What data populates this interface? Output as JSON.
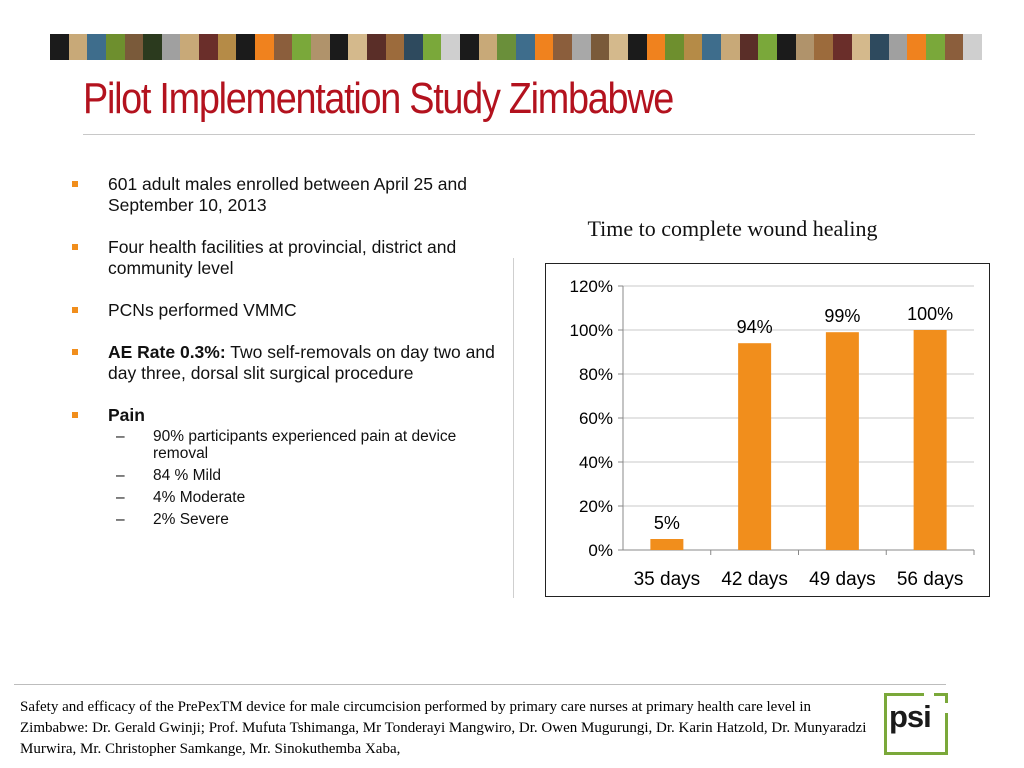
{
  "header": {
    "stripe_colors": [
      "#1b1b1b",
      "#c8a978",
      "#3e6d8c",
      "#6e8f2e",
      "#7a5a3a",
      "#2b3a1e",
      "#a0a0a0",
      "#c8a978",
      "#6a2e2a",
      "#b58b47",
      "#1b1b1b",
      "#f0821e",
      "#8b5e3c",
      "#7aa83a",
      "#b0936b",
      "#1b1b1b",
      "#d4b98c",
      "#5a2e28",
      "#9c6b3c",
      "#2e4a5e",
      "#7aa83a",
      "#cfcfcf",
      "#1b1b1b",
      "#c8a978",
      "#6a8f3a",
      "#3e6d8c",
      "#f0821e",
      "#8b5e3c",
      "#a8a8a8",
      "#7a5a3a",
      "#d4b98c",
      "#1b1b1b",
      "#f0821e",
      "#6e8f2e",
      "#b58b47",
      "#3e6d8c",
      "#c8a978",
      "#5a2e28",
      "#7aa83a",
      "#1b1b1b",
      "#b0936b",
      "#9c6b3c",
      "#6a2e2a",
      "#d4b98c",
      "#2e4a5e",
      "#a0a0a0",
      "#f0821e",
      "#7aa83a",
      "#8b5e3c",
      "#cfcfcf"
    ],
    "title": "Pilot Implementation Study Zimbabwe"
  },
  "bullets": [
    {
      "label": "",
      "text": "601 adult males enrolled between April 25 and September 10, 2013"
    },
    {
      "label": "",
      "text": "Four health facilities at provincial,  district and community level"
    },
    {
      "label": "",
      "text": "PCNs performed VMMC"
    },
    {
      "label": "AE Rate 0.3%:",
      "text": " Two self-removals on day two and day three, dorsal slit surgical procedure"
    },
    {
      "label": "Pain",
      "text": ""
    }
  ],
  "pain_details": [
    "90% participants experienced pain at device removal",
    "84 % Mild",
    "4% Moderate",
    "2% Severe"
  ],
  "chart_data": {
    "type": "bar",
    "title": "Time to complete wound healing",
    "categories": [
      "35 days",
      "42 days",
      "49 days",
      "56 days"
    ],
    "values": [
      5,
      94,
      99,
      100
    ],
    "value_labels": [
      "5%",
      "94%",
      "99%",
      "100%"
    ],
    "yticks": [
      "0%",
      "20%",
      "40%",
      "60%",
      "80%",
      "100%",
      "120%"
    ],
    "ylim": [
      0,
      120
    ],
    "xlabel": "",
    "ylabel": "",
    "grid": true,
    "bar_color": "#f18e1c"
  },
  "footer": {
    "citation": "Safety and efficacy of the PrePexTM device for male circumcision performed by primary care nurses at primary health care level in Zimbabwe: Dr. Gerald Gwinji; Prof. Mufuta Tshimanga, Mr Tonderayi Mangwiro, Dr. Owen Mugurungi, Dr. Karin Hatzold,  Dr. Munyaradzi Murwira, Mr. Christopher Samkange, Mr. Sinokuthemba Xaba,",
    "logo_text": "psi"
  }
}
